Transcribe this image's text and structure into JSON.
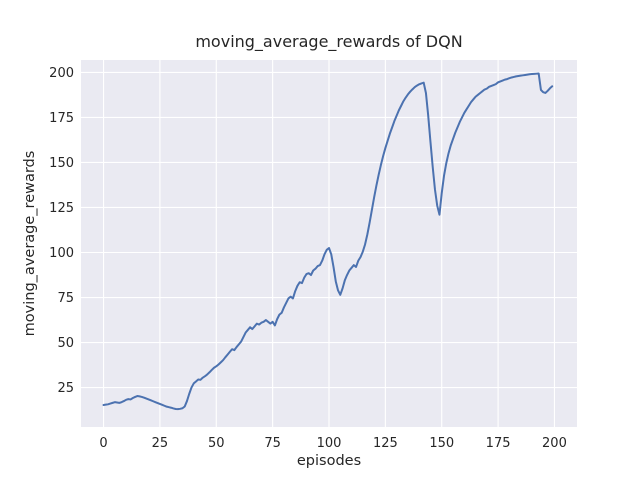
{
  "chart_data": {
    "type": "line",
    "title": "moving_average_rewards of DQN",
    "xlabel": "episodes",
    "ylabel": "moving_average_rewards",
    "xlim": [
      -10.0,
      210.0
    ],
    "ylim": [
      3.1,
      206.9
    ],
    "xticks": [
      0,
      25,
      50,
      75,
      100,
      125,
      150,
      175,
      200
    ],
    "yticks": [
      25,
      50,
      75,
      100,
      125,
      150,
      175,
      200
    ],
    "grid": true,
    "legend": false,
    "style": "seaborn-darkgrid",
    "colors": {
      "line": "#4c72b0",
      "plot_background": "#eaeaf2",
      "gridline": "#ffffff",
      "text": "#262626",
      "figure_background": "#ffffff"
    },
    "series": [
      {
        "name": "DQN moving average rewards",
        "x_start": 0,
        "x_step": 1,
        "values": [
          15.3,
          15.5,
          15.7,
          16.1,
          16.5,
          16.9,
          16.7,
          16.5,
          16.9,
          17.5,
          18.2,
          18.6,
          18.4,
          19.2,
          19.8,
          20.3,
          20.1,
          19.8,
          19.4,
          18.9,
          18.4,
          17.9,
          17.4,
          16.9,
          16.4,
          15.9,
          15.4,
          14.9,
          14.4,
          14.1,
          13.8,
          13.4,
          13.1,
          13.0,
          13.2,
          13.5,
          14.5,
          17.5,
          21.5,
          25.0,
          27.3,
          28.4,
          29.5,
          29.3,
          30.5,
          31.3,
          32.3,
          33.5,
          34.8,
          36.0,
          36.8,
          37.8,
          39.0,
          40.2,
          41.8,
          43.3,
          44.8,
          46.3,
          45.8,
          47.5,
          49.0,
          50.5,
          53.0,
          55.5,
          57.0,
          58.5,
          57.5,
          59.0,
          60.5,
          60.0,
          61.0,
          61.5,
          62.5,
          61.5,
          60.5,
          61.5,
          59.5,
          63.0,
          65.5,
          66.5,
          69.5,
          72.0,
          74.5,
          75.5,
          74.5,
          78.5,
          81.5,
          83.5,
          83.0,
          86.0,
          88.0,
          88.5,
          87.5,
          90.0,
          91.0,
          92.5,
          93.0,
          95.5,
          99.0,
          101.5,
          102.5,
          99.0,
          92.0,
          84.0,
          79.0,
          76.5,
          80.0,
          84.5,
          87.5,
          90.0,
          91.5,
          93.0,
          92.0,
          95.5,
          97.5,
          100.5,
          104.5,
          110.0,
          116.5,
          123.5,
          130.5,
          137.0,
          143.0,
          148.5,
          153.5,
          158.0,
          162.0,
          166.0,
          169.5,
          173.0,
          176.0,
          179.0,
          181.5,
          184.0,
          186.0,
          187.8,
          189.3,
          190.6,
          191.8,
          192.7,
          193.4,
          193.9,
          194.3,
          188.5,
          176.0,
          161.5,
          147.5,
          135.0,
          126.0,
          121.0,
          133.0,
          142.5,
          149.5,
          155.0,
          159.5,
          163.0,
          166.5,
          169.5,
          172.5,
          175.0,
          177.5,
          179.5,
          181.5,
          183.5,
          185.0,
          186.5,
          187.5,
          188.5,
          189.5,
          190.5,
          191.0,
          192.0,
          192.5,
          193.0,
          193.5,
          194.5,
          195.0,
          195.5,
          196.0,
          196.3,
          196.8,
          197.2,
          197.5,
          197.8,
          198.0,
          198.2,
          198.4,
          198.6,
          198.8,
          199.0,
          199.1,
          199.2,
          199.3,
          199.4,
          190.3,
          189.0,
          188.6,
          189.8,
          191.2,
          192.3
        ]
      }
    ]
  }
}
